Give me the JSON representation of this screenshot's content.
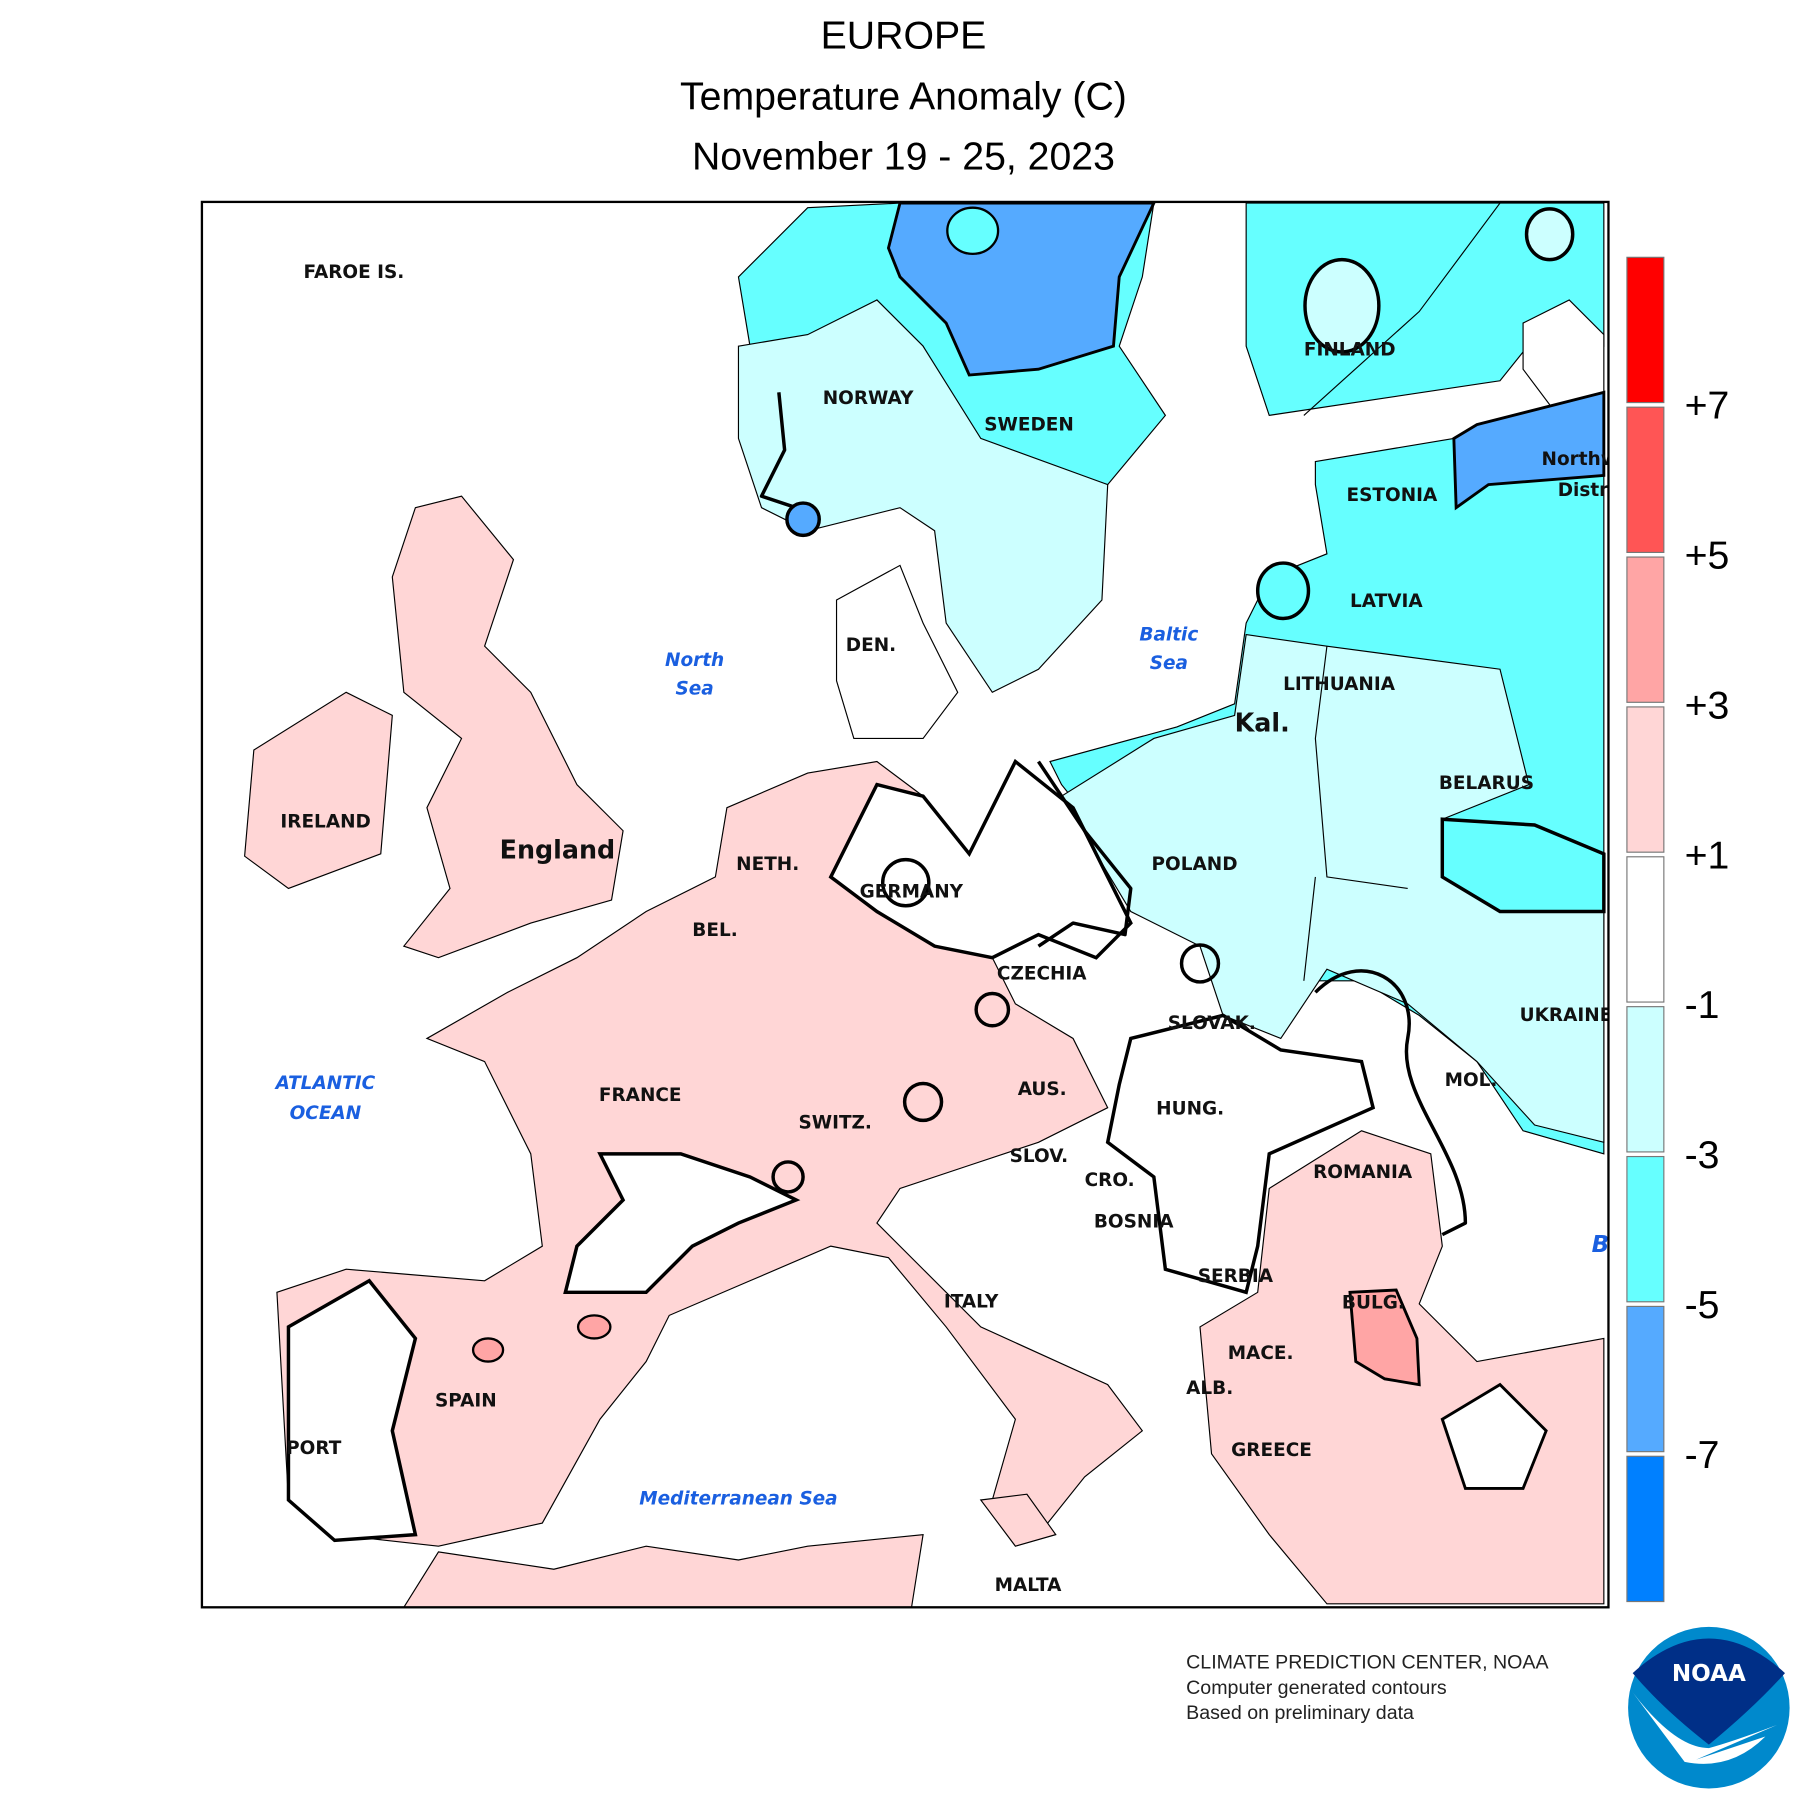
{
  "title": {
    "line1": "EUROPE",
    "line2": "Temperature Anomaly (C)",
    "line3": "November 19 - 25, 2023"
  },
  "legend": {
    "colors": [
      "#ff0000",
      "#ff5555",
      "#ffa5a5",
      "#ffd6d6",
      "#ffffff",
      "#ccffff",
      "#66ffff",
      "#55aaff",
      "#0080ff"
    ],
    "labels": [
      "+7",
      "+5",
      "+3",
      "+1",
      "-1",
      "-3",
      "-5",
      "-7"
    ]
  },
  "map": {
    "labels": [
      "FAROE IS.",
      "NORWAY",
      "SWEDEN",
      "FINLAND",
      "ESTONIA",
      "LATVIA",
      "LITHUANIA",
      "Kal.",
      "BELARUS",
      "POLAND",
      "DEN.",
      "IRELAND",
      "England",
      "NETH.",
      "GERMANY",
      "BEL.",
      "CZECHIA",
      "SLOVAK.",
      "UKRAINE",
      "MOL.",
      "AUS.",
      "HUNG.",
      "SWITZ.",
      "FRANCE",
      "SLOV.",
      "CRO.",
      "ROMANIA",
      "BOSNIA",
      "SERBIA",
      "BULG.",
      "ITALY",
      "MACE.",
      "ALB.",
      "SPAIN",
      "PORT",
      "GREECE",
      "MALTA",
      "Northw",
      "Distri"
    ],
    "seas": {
      "north_sea": [
        "North",
        "Sea"
      ],
      "baltic_sea": [
        "Baltic",
        "Sea"
      ],
      "atlantic": [
        "ATLANTIC",
        "OCEAN"
      ],
      "mediterranean": [
        "Mediterranean Sea"
      ],
      "black_sea_partial": [
        "B"
      ]
    },
    "anomaly_colors": {
      "plus_1_to_3": "#ffd6d6",
      "plus_3_to_5": "#ffa5a5",
      "minus_1_to_3": "#ccffff",
      "minus_3_to_5": "#66ffff",
      "minus_5_to_7": "#55aaff"
    }
  },
  "footer": {
    "line1": "CLIMATE PREDICTION CENTER, NOAA",
    "line2": "Computer generated contours",
    "line3": "Based on preliminary data"
  },
  "logo": {
    "text": "NOAA",
    "dark": "#002f87",
    "light": "#0089cc"
  }
}
